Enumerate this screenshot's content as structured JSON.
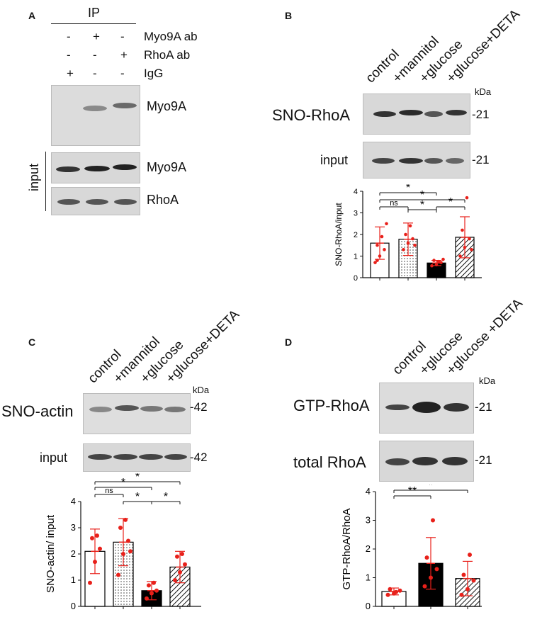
{
  "panels": {
    "A": {
      "letter": "A",
      "ip": "IP",
      "rows": [
        {
          "signs": [
            "-",
            "+",
            "-"
          ],
          "label": "Myo9A ab"
        },
        {
          "signs": [
            "-",
            "-",
            "+"
          ],
          "label": "RhoA ab"
        },
        {
          "signs": [
            "+",
            "-",
            "-"
          ],
          "label": "IgG"
        }
      ],
      "blot_ip": "Myo9A",
      "input_label": "input",
      "blot_input1": "Myo9A",
      "blot_input2": "RhoA"
    },
    "B": {
      "letter": "B",
      "lanes": [
        "control",
        "+mannitol",
        "+glucose",
        "+glucose+DETA"
      ],
      "kda": "kDa",
      "blot1": "SNO-RhoA",
      "mw1": "-21",
      "blot2": "input",
      "mw2": "-21"
    },
    "C": {
      "letter": "C",
      "lanes": [
        "control",
        "+mannitol",
        "+glucose",
        "+glucose+DETA"
      ],
      "kda": "kDa",
      "blot1": "SNO-actin",
      "mw1": "-42",
      "blot2": "input",
      "mw2": "-42"
    },
    "D": {
      "letter": "D",
      "lanes": [
        "control",
        "+glucose",
        "+glucose +DETA"
      ],
      "kda": "kDa",
      "blot1": "GTP-RhoA",
      "mw1": "-21",
      "blot2": "total RhoA",
      "mw2": "-21"
    }
  },
  "chart_data": [
    {
      "panel": "B",
      "type": "bar",
      "ylabel": "SNO-RhoA/input",
      "ylim": [
        0,
        4
      ],
      "yticks": [
        0,
        1,
        2,
        3,
        4
      ],
      "bars": [
        {
          "mean": 1.6,
          "sd": 0.75,
          "fill": "white",
          "points": [
            0.7,
            1.0,
            1.3,
            1.5,
            1.9,
            2.5,
            0.8
          ]
        },
        {
          "mean": 1.78,
          "sd": 0.75,
          "fill": "dots",
          "points": [
            1.3,
            1.6,
            1.8,
            2.0,
            2.4,
            1.5
          ]
        },
        {
          "mean": 0.68,
          "sd": 0.12,
          "fill": "black",
          "points": [
            0.55,
            0.6,
            0.7,
            0.8,
            0.75,
            0.85
          ]
        },
        {
          "mean": 1.87,
          "sd": 0.95,
          "fill": "hatch",
          "points": [
            1.0,
            1.4,
            1.8,
            2.2,
            3.7,
            1.3
          ]
        }
      ],
      "comparisons": [
        {
          "from": 0,
          "to": 2,
          "label": "*"
        },
        {
          "from": 0,
          "to": 3,
          "label": "*"
        },
        {
          "from": 0,
          "to": 1,
          "label": "ns"
        },
        {
          "from": 1,
          "to": 2,
          "label": "*"
        },
        {
          "from": 2,
          "to": 3,
          "label": "*"
        }
      ],
      "color_points": "#e8201a"
    },
    {
      "panel": "C",
      "type": "bar",
      "ylabel": "SNO-actin/ input",
      "ylim": [
        0,
        4
      ],
      "yticks": [
        0,
        1,
        2,
        3,
        4
      ],
      "bars": [
        {
          "mean": 2.1,
          "sd": 0.85,
          "fill": "white",
          "points": [
            0.9,
            1.7,
            2.2,
            2.6,
            2.7
          ]
        },
        {
          "mean": 2.45,
          "sd": 0.9,
          "fill": "dots",
          "points": [
            1.2,
            2.0,
            2.5,
            3.0,
            3.3,
            2.1
          ]
        },
        {
          "mean": 0.6,
          "sd": 0.35,
          "fill": "black",
          "points": [
            0.3,
            0.5,
            0.6,
            0.8,
            0.9
          ]
        },
        {
          "mean": 1.5,
          "sd": 0.6,
          "fill": "hatch",
          "points": [
            1.0,
            1.3,
            1.6,
            1.9,
            2.0
          ]
        }
      ],
      "comparisons": [
        {
          "from": 0,
          "to": 3,
          "label": "*"
        },
        {
          "from": 0,
          "to": 2,
          "label": "*"
        },
        {
          "from": 0,
          "to": 1,
          "label": "ns"
        },
        {
          "from": 1,
          "to": 2,
          "label": "*"
        },
        {
          "from": 2,
          "to": 3,
          "label": "*"
        }
      ],
      "color_points": "#e8201a"
    },
    {
      "panel": "D",
      "type": "bar",
      "ylabel": "GTP-RhoA/RhoA",
      "ylim": [
        0,
        4
      ],
      "yticks": [
        0,
        1,
        2,
        3,
        4
      ],
      "bars": [
        {
          "mean": 0.52,
          "sd": 0.12,
          "fill": "white",
          "points": [
            0.4,
            0.45,
            0.55,
            0.6,
            0.5
          ]
        },
        {
          "mean": 1.5,
          "sd": 0.9,
          "fill": "black",
          "points": [
            0.7,
            1.0,
            1.3,
            1.7,
            3.0
          ]
        },
        {
          "mean": 0.97,
          "sd": 0.6,
          "fill": "hatch",
          "points": [
            0.4,
            0.6,
            0.9,
            1.1,
            1.8
          ]
        }
      ],
      "comparisons": [
        {
          "from": 0,
          "to": 1,
          "label": "**"
        },
        {
          "from": 0,
          "to": 2,
          "label": "*"
        }
      ],
      "color_points": "#e8201a"
    }
  ]
}
